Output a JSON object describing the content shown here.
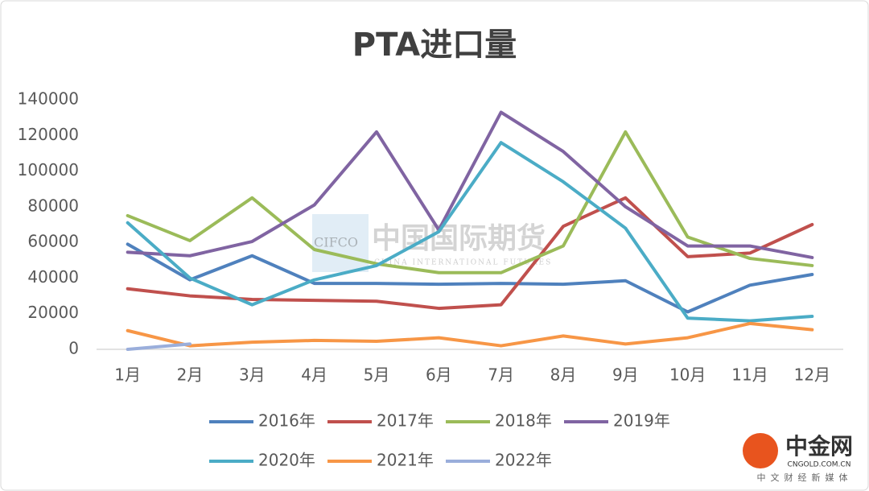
{
  "chart_data": {
    "type": "line",
    "title": "PTA进口量",
    "categories": [
      "1月",
      "2月",
      "3月",
      "4月",
      "5月",
      "6月",
      "7月",
      "8月",
      "9月",
      "10月",
      "11月",
      "12月"
    ],
    "series": [
      {
        "name": "2016年",
        "color": "#4f81bd",
        "values": [
          59000,
          39000,
          52500,
          37000,
          37000,
          36500,
          37000,
          36500,
          38500,
          21000,
          36000,
          42000
        ]
      },
      {
        "name": "2017年",
        "color": "#c0504d",
        "values": [
          34000,
          30000,
          28000,
          27500,
          27000,
          23000,
          25000,
          69000,
          85000,
          52000,
          54000,
          70000
        ]
      },
      {
        "name": "2018年",
        "color": "#9bbb59",
        "values": [
          75000,
          61000,
          85000,
          56000,
          48000,
          43000,
          43000,
          58000,
          122000,
          63000,
          51000,
          47000
        ]
      },
      {
        "name": "2019年",
        "color": "#8064a2",
        "values": [
          54500,
          52500,
          60500,
          81000,
          122000,
          67000,
          133000,
          111000,
          80000,
          58000,
          58000,
          51500
        ]
      },
      {
        "name": "2020年",
        "color": "#4bacc6",
        "values": [
          71000,
          40000,
          25000,
          39000,
          47000,
          66000,
          116000,
          94000,
          68000,
          17500,
          16000,
          18500
        ]
      },
      {
        "name": "2021年",
        "color": "#f79646",
        "values": [
          10500,
          2000,
          4000,
          5000,
          4500,
          6500,
          2000,
          7500,
          3000,
          6500,
          14500,
          11000
        ]
      },
      {
        "name": "2022年",
        "color": "#9aaedb",
        "values": [
          0,
          3000,
          null,
          null,
          null,
          null,
          null,
          null,
          null,
          null,
          null,
          null
        ]
      }
    ],
    "ylim": [
      0,
      140000
    ],
    "yticks": [
      0,
      20000,
      40000,
      60000,
      80000,
      100000,
      120000,
      140000
    ],
    "grid": false,
    "legend": "bottom",
    "watermark": {
      "logo": "CIFCO",
      "name": "中国国际期货",
      "sub": "CHINA INTERNATIONAL FUTURES"
    },
    "corner_logo": {
      "name": "中金网",
      "url": "CNGOLD.COM.CN",
      "tagline": "中文财经新媒体"
    }
  }
}
